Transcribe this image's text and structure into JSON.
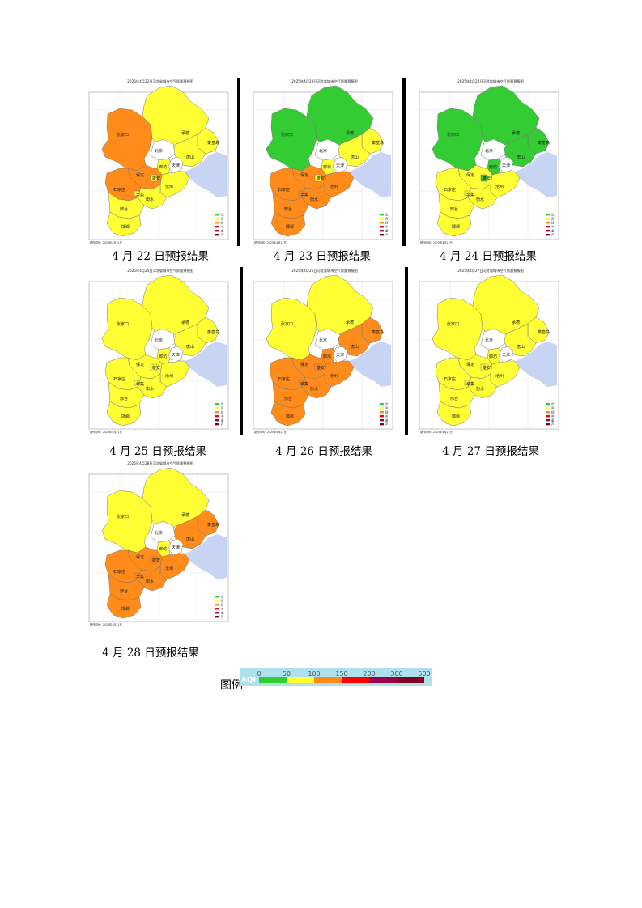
{
  "panels": [
    {
      "id": "p1",
      "date": "2025年4月22日",
      "caption": "4 月 22 日预报结果",
      "title": "2025年4月22日河北省城市空气质量预报图",
      "footer": "制作时间：2025年4月21日",
      "colors": {
        "zjk": "#ff8c1a",
        "cd": "#ffff33",
        "bd": "#ff8c1a",
        "lf": "#ffff33",
        "ts": "#ffff33",
        "qhd": "#ffff33",
        "sjz": "#ff8c1a",
        "hs": "#ffff33",
        "cz": "#ffff33",
        "xt": "#ffff33",
        "hd": "#ffff33",
        "xa": "#ffff33",
        "dz": "#ffff33"
      }
    },
    {
      "id": "p2",
      "date": "2025年4月23日",
      "caption": "4 月 23 日预报结果",
      "title": "2025年4月23日河北省城市空气质量预报图",
      "footer": "制作时间：2025年4月21日",
      "colors": {
        "zjk": "#33cc33",
        "cd": "#33cc33",
        "bd": "#ff8c1a",
        "lf": "#ffff33",
        "ts": "#ffff33",
        "qhd": "#ffff33",
        "sjz": "#ff8c1a",
        "hs": "#ff8c1a",
        "cz": "#ff8c1a",
        "xt": "#ff8c1a",
        "hd": "#ff8c1a",
        "xa": "#ffff33",
        "dz": "#ff8c1a"
      }
    },
    {
      "id": "p3",
      "date": "2025年4月24日",
      "caption": "4 月 24 日预报结果",
      "title": "2025年4月24日河北省城市空气质量预报图",
      "footer": "制作时间：2025年4月21日",
      "colors": {
        "zjk": "#33cc33",
        "cd": "#33cc33",
        "bd": "#ffff33",
        "lf": "#33cc33",
        "ts": "#33cc33",
        "qhd": "#33cc33",
        "sjz": "#ffff33",
        "hs": "#ffff33",
        "cz": "#ffff33",
        "xt": "#ffff33",
        "hd": "#ffff33",
        "xa": "#33cc33",
        "dz": "#ffff33"
      }
    },
    {
      "id": "p4",
      "date": "2025年4月25日",
      "caption": "4 月 25 日预报结果",
      "title": "2025年4月25日河北省城市空气质量预报图",
      "footer": "制作时间：2025年4月21日",
      "colors": {
        "zjk": "#ffff33",
        "cd": "#ffff33",
        "bd": "#ffff33",
        "lf": "#ffff33",
        "ts": "#ffff33",
        "qhd": "#ffff33",
        "sjz": "#ffff33",
        "hs": "#ffff33",
        "cz": "#ffff33",
        "xt": "#ffff33",
        "hd": "#ffff33",
        "xa": "#ffff33",
        "dz": "#ffff33"
      }
    },
    {
      "id": "p5",
      "date": "2025年4月26日",
      "caption": "4 月 26 日预报结果",
      "title": "2025年4月26日河北省城市空气质量预报图",
      "footer": "制作时间：2025年4月21日",
      "colors": {
        "zjk": "#ffff33",
        "cd": "#ffff33",
        "bd": "#ff8c1a",
        "lf": "#ff8c1a",
        "ts": "#ff8c1a",
        "qhd": "#ff8c1a",
        "sjz": "#ff8c1a",
        "hs": "#ff8c1a",
        "cz": "#ff8c1a",
        "xt": "#ff8c1a",
        "hd": "#ff8c1a",
        "xa": "#ff8c1a",
        "dz": "#ff8c1a"
      }
    },
    {
      "id": "p6",
      "date": "2025年4月27日",
      "caption": "4 月 27 日预报结果",
      "title": "2025年4月27日河北省城市空气质量预报图",
      "footer": "制作时间：2025年4月21日",
      "colors": {
        "zjk": "#ffff33",
        "cd": "#ffff33",
        "bd": "#ffff33",
        "lf": "#ffff33",
        "ts": "#ffff33",
        "qhd": "#ffff33",
        "sjz": "#ffff33",
        "hs": "#ffff33",
        "cz": "#ffff33",
        "xt": "#ffff33",
        "hd": "#ffff33",
        "xa": "#ffff33",
        "dz": "#ffff33"
      }
    },
    {
      "id": "p7",
      "date": "2025年4月28日",
      "caption": "4 月 28 日预报结果",
      "title": "2025年4月28日河北省城市空气质量预报图",
      "footer": "制作时间：2025年4月21日",
      "colors": {
        "zjk": "#ffff33",
        "cd": "#ffff33",
        "bd": "#ff8c1a",
        "lf": "#ffff33",
        "ts": "#ff8c1a",
        "qhd": "#ff8c1a",
        "sjz": "#ff8c1a",
        "hs": "#ff8c1a",
        "cz": "#ff8c1a",
        "xt": "#ff8c1a",
        "hd": "#ff8c1a",
        "xa": "#ff8c1a",
        "dz": "#ff8c1a"
      }
    }
  ],
  "city_labels": {
    "zjk": "张家口",
    "cd": "承德",
    "bj": "北京",
    "tj": "天津",
    "ts": "唐山",
    "qhd": "秦皇岛",
    "bd": "保定",
    "lf": "廊坊",
    "xa": "雄安",
    "sjz": "石家庄",
    "xj": "辛集",
    "hs": "衡水",
    "cz": "沧州",
    "xt": "邢台",
    "hd": "邯郸"
  },
  "map_legend": [
    {
      "label": "优",
      "color": "#33cc33"
    },
    {
      "label": "良",
      "color": "#ffff33"
    },
    {
      "label": "轻",
      "color": "#ff8c1a"
    },
    {
      "label": "中",
      "color": "#ff0000"
    },
    {
      "label": "重",
      "color": "#99004c"
    },
    {
      "label": "严",
      "color": "#7e0023"
    }
  ],
  "aqi_legend": {
    "label": "图例",
    "aqi_text": "AQI",
    "ticks": [
      "0",
      "50",
      "100",
      "150",
      "200",
      "300",
      "500"
    ],
    "colors": [
      "#33cc33",
      "#ffff33",
      "#ff8c1a",
      "#ff0000",
      "#99004c",
      "#7e0023"
    ]
  },
  "colors": {
    "sea": "#c8d4f4",
    "bj_tj": "#ffffff",
    "border": "#777777",
    "text_panel": "#222222",
    "tick": "#666666"
  }
}
